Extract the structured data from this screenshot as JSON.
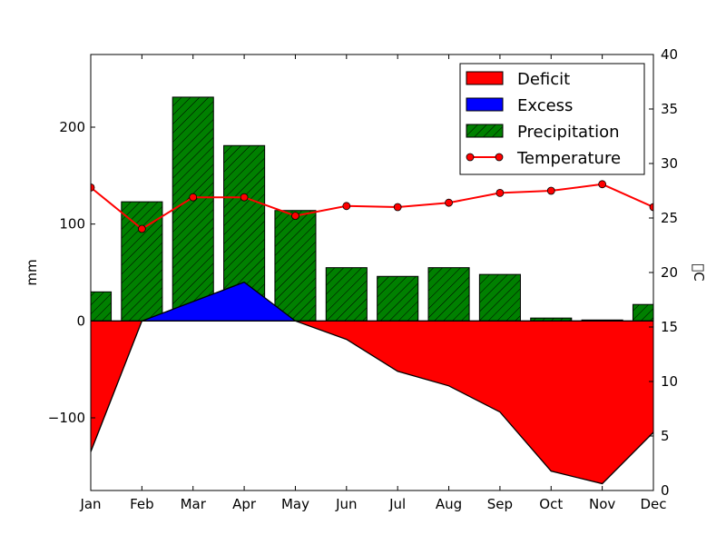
{
  "chart_data": {
    "type": "bar",
    "categories": [
      "Jan",
      "Feb",
      "Mar",
      "Apr",
      "May",
      "Jun",
      "Jul",
      "Aug",
      "Sep",
      "Oct",
      "Nov",
      "Dec"
    ],
    "series": [
      {
        "name": "Precipitation",
        "kind": "bar",
        "axis": "left",
        "color": "#008000",
        "hatch": true,
        "values": [
          30,
          123,
          231,
          181,
          114,
          55,
          46,
          55,
          48,
          3,
          1,
          17
        ]
      },
      {
        "name": "Excess",
        "kind": "area",
        "axis": "left",
        "color": "#0000ff",
        "values": [
          0,
          0,
          20,
          40,
          0,
          0,
          0,
          0,
          0,
          0,
          0,
          0
        ]
      },
      {
        "name": "Deficit",
        "kind": "area",
        "axis": "left",
        "color": "#ff0000",
        "values": [
          -135,
          0,
          0,
          0,
          0,
          -19,
          -52,
          -67,
          -94,
          -155,
          -168,
          -115
        ]
      },
      {
        "name": "Temperature",
        "kind": "line",
        "axis": "right",
        "color": "#ff0000",
        "values": [
          27.8,
          24.0,
          26.9,
          26.9,
          25.2,
          26.1,
          26.0,
          26.4,
          27.3,
          27.5,
          28.1,
          26.0
        ]
      }
    ],
    "ylabel": "mm",
    "ylabel_right": "\u0000C",
    "ylim": [
      -175,
      275
    ],
    "yticks": [
      -100,
      0,
      100,
      200
    ],
    "ylim_right": [
      0,
      40
    ],
    "yticks_right": [
      0,
      5,
      10,
      15,
      20,
      25,
      30,
      35,
      40
    ],
    "legend": {
      "position": "top-right",
      "entries": [
        "Deficit",
        "Excess",
        "Precipitation",
        "Temperature"
      ]
    }
  }
}
